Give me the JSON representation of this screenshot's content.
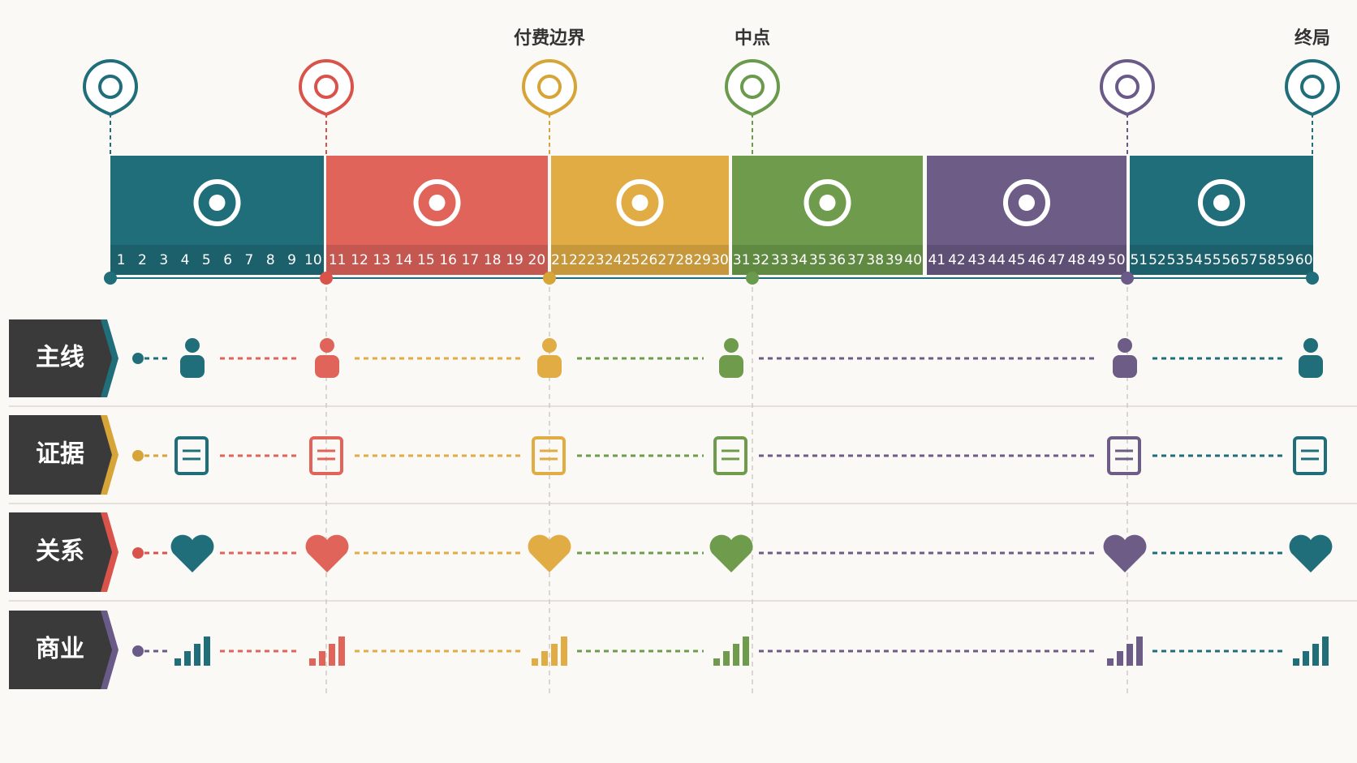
{
  "milestones": [
    {
      "color": "#1f6e7a"
    },
    {
      "color": "#d9534a"
    },
    {
      "label": "付费边界",
      "color": "#d6a437"
    },
    {
      "label": "中点",
      "color": "#6a9a4c"
    },
    {
      "color": "#6a5a88"
    },
    {
      "label": "终局",
      "color": "#1f6e7a"
    }
  ],
  "acts": [
    {
      "color": "#1f6e7a",
      "episodes": [
        1,
        2,
        3,
        4,
        5,
        6,
        7,
        8,
        9,
        10
      ]
    },
    {
      "color": "#e0645a",
      "episodes": [
        11,
        12,
        13,
        14,
        15,
        16,
        17,
        18,
        19,
        20
      ]
    },
    {
      "color": "#e2ac44",
      "episodes": [
        21,
        22,
        23,
        24,
        25,
        26,
        27,
        28,
        29,
        30
      ]
    },
    {
      "color": "#6e9c4c",
      "episodes": [
        31,
        32,
        33,
        34,
        35,
        36,
        37,
        38,
        39,
        40
      ]
    },
    {
      "color": "#6c5c86",
      "episodes": [
        41,
        42,
        43,
        44,
        45,
        46,
        47,
        48,
        49,
        50
      ]
    },
    {
      "color": "#1f6e7a",
      "episodes": [
        51,
        52,
        53,
        54,
        55,
        56,
        57,
        58,
        59,
        60
      ]
    }
  ],
  "rows": [
    {
      "label": "主线",
      "color": "#1f6e7a"
    },
    {
      "label": "证据",
      "color": "#d6a437"
    },
    {
      "label": "关系",
      "color": "#d9534a"
    },
    {
      "label": "商业",
      "color": "#6a5a88"
    }
  ]
}
